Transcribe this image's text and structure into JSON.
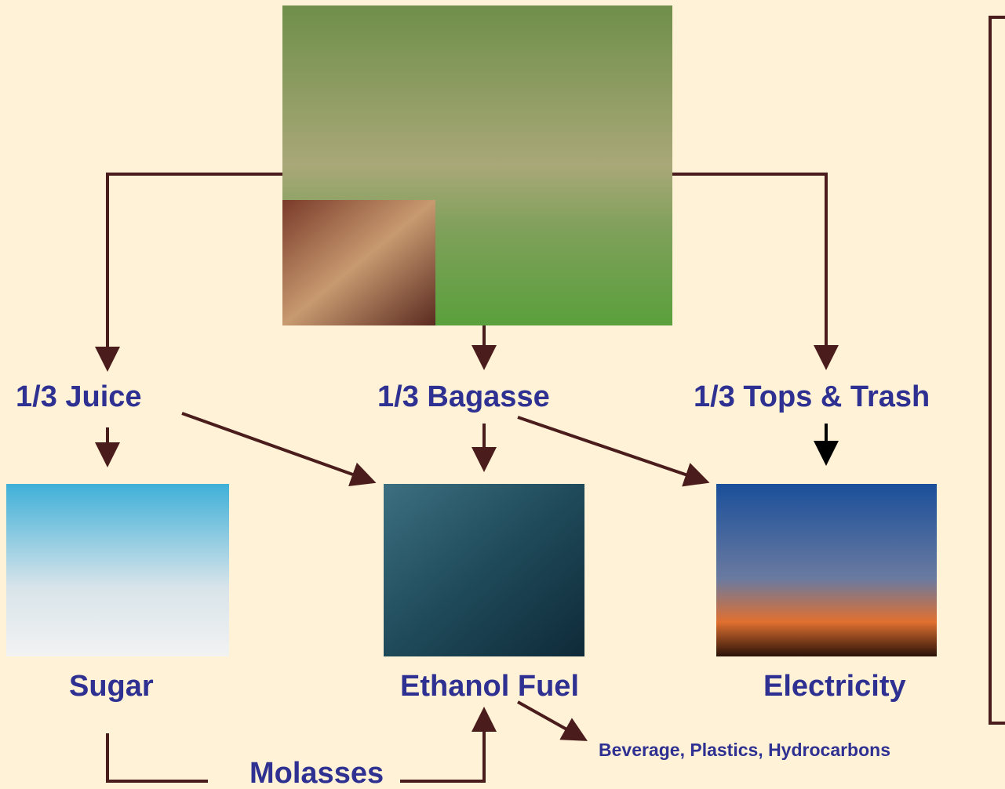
{
  "nodes": [
    {
      "label": "1/3 Juice"
    },
    {
      "label": "1/3 Bagasse"
    },
    {
      "label": "1/3 Tops & Trash"
    },
    {
      "label": "Sugar"
    },
    {
      "label": "Ethanol Fuel"
    },
    {
      "label": "Electricity"
    },
    {
      "label": "Beverage, Plastics, Hydrocarbons"
    },
    {
      "label": "Molasses"
    }
  ]
}
